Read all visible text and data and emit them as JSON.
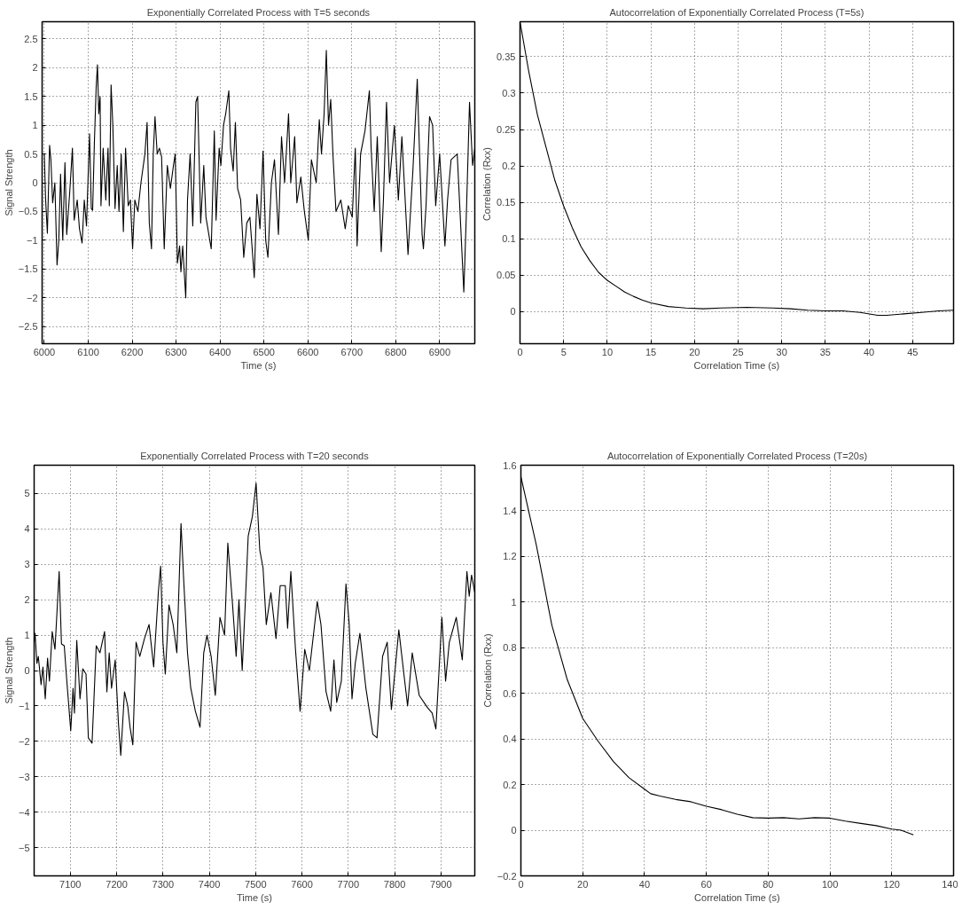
{
  "chart_data": [
    {
      "type": "line",
      "title": "Exponentially Correlated Process with T=5 seconds",
      "xlabel": "Time (s)",
      "ylabel": "Signal Strength",
      "grid": true,
      "line_style": "solid",
      "xlim": [
        5995,
        6980
      ],
      "ylim": [
        -2.8,
        2.8
      ],
      "xticks": [
        6000,
        6100,
        6200,
        6300,
        6400,
        6500,
        6600,
        6700,
        6800,
        6900
      ],
      "yticks": [
        -2.5,
        -2,
        -1.5,
        -1,
        -0.5,
        0,
        0.5,
        1,
        1.5,
        2,
        2.5
      ],
      "series": [
        {
          "color": "#000000",
          "x": [
            6000,
            6003,
            6007,
            6012,
            6015,
            6019,
            6024,
            6029,
            6033,
            6037,
            6042,
            6047,
            6051,
            6058,
            6064,
            6068,
            6075,
            6080,
            6086,
            6091,
            6096,
            6103,
            6107,
            6110,
            6114,
            6118,
            6121,
            6124,
            6127,
            6129,
            6134,
            6140,
            6145,
            6148,
            6152,
            6156,
            6161,
            6166,
            6170,
            6175,
            6180,
            6185,
            6191,
            6196,
            6201,
            6206,
            6213,
            6220,
            6229,
            6234,
            6239,
            6244,
            6248,
            6252,
            6257,
            6262,
            6267,
            6273,
            6280,
            6287,
            6294,
            6298,
            6303,
            6308,
            6311,
            6315,
            6322,
            6326,
            6332,
            6338,
            6345,
            6349,
            6356,
            6363,
            6368,
            6380,
            6387,
            6391,
            6398,
            6402,
            6408,
            6413,
            6420,
            6424,
            6430,
            6435,
            6440,
            6447,
            6454,
            6461,
            6468,
            6478,
            6484,
            6491,
            6498,
            6504,
            6509,
            6517,
            6524,
            6533,
            6540,
            6547,
            6556,
            6561,
            6570,
            6575,
            6584,
            6592,
            6601,
            6608,
            6619,
            6626,
            6631,
            6637,
            6642,
            6647,
            6652,
            6657,
            6664,
            6675,
            6685,
            6692,
            6701,
            6708,
            6712,
            6720,
            6730,
            6740,
            6744,
            6751,
            6758,
            6767,
            6772,
            6779,
            6786,
            6797,
            6806,
            6814,
            6828,
            6839,
            6849,
            6860,
            6863,
            6869,
            6877,
            6884,
            6891,
            6900,
            6912,
            6918,
            6926,
            6940,
            6947,
            6955,
            6961,
            6968,
            6975,
            6980
          ],
          "values": [
            0.5,
            -0.3,
            -0.88,
            0.65,
            0.4,
            -0.35,
            0.0,
            -1.43,
            -1.0,
            0.15,
            -1.0,
            0.35,
            -0.9,
            -0.15,
            0.6,
            -0.65,
            -0.3,
            -0.8,
            -1.05,
            -0.3,
            -0.75,
            0.85,
            -0.45,
            -0.48,
            0.7,
            1.65,
            2.05,
            1.2,
            1.5,
            -0.4,
            0.6,
            -0.3,
            0.6,
            -0.4,
            1.7,
            1.0,
            -0.45,
            0.3,
            -0.5,
            0.5,
            -0.85,
            0.6,
            -0.4,
            -0.3,
            -1.15,
            -0.3,
            -0.5,
            0.0,
            0.5,
            1.05,
            -0.7,
            -1.15,
            0.5,
            1.15,
            0.5,
            0.6,
            0.45,
            -1.15,
            0.3,
            -0.1,
            0.3,
            0.5,
            -1.4,
            -1.1,
            -1.55,
            -1.1,
            -2.0,
            -0.3,
            0.5,
            -0.75,
            1.4,
            1.5,
            -0.7,
            0.3,
            -0.6,
            -1.15,
            0.9,
            -0.65,
            0.6,
            0.3,
            1.0,
            1.2,
            1.6,
            0.6,
            0.2,
            1.05,
            -0.1,
            -0.3,
            -1.3,
            -0.7,
            -0.6,
            -1.65,
            -0.2,
            -0.8,
            0.55,
            -1.0,
            -1.3,
            0.0,
            0.4,
            -0.9,
            0.8,
            0.0,
            1.2,
            0.0,
            0.8,
            -0.35,
            0.1,
            -0.5,
            -1.0,
            0.4,
            0.0,
            1.1,
            0.5,
            1.2,
            2.3,
            1.0,
            1.45,
            0.5,
            -0.5,
            -0.3,
            -0.8,
            -0.4,
            -0.6,
            0.6,
            -1.1,
            0.5,
            0.9,
            1.6,
            0.6,
            -0.5,
            0.8,
            -1.2,
            -0.3,
            1.4,
            0.0,
            1.0,
            -0.3,
            0.8,
            -1.25,
            0.2,
            1.8,
            -0.9,
            -1.15,
            -0.4,
            1.15,
            1.0,
            -0.4,
            0.5,
            -1.1,
            -0.3,
            0.4,
            0.5,
            -0.6,
            -1.9,
            -0.5,
            1.4,
            0.3,
            0.6
          ]
        }
      ]
    },
    {
      "type": "line",
      "title": "Autocorrelation of Exponentially Correlated Process (T=5s)",
      "xlabel": "Correlation Time (s)",
      "ylabel": "Correlation  (Rxx)",
      "grid": true,
      "line_style": "solid",
      "xlim": [
        0,
        49.7
      ],
      "ylim": [
        -0.044,
        0.398
      ],
      "xticks": [
        0,
        5,
        10,
        15,
        20,
        25,
        30,
        35,
        40,
        45
      ],
      "yticks": [
        0,
        0.05,
        0.1,
        0.15,
        0.2,
        0.25,
        0.3,
        0.35
      ],
      "series": [
        {
          "color": "#000000",
          "x": [
            0,
            1,
            2,
            3,
            4,
            5,
            6,
            7,
            8,
            9,
            10,
            11,
            12,
            13,
            14,
            15,
            17,
            19,
            21,
            23,
            26,
            29,
            31,
            33,
            35,
            37,
            39,
            41,
            42,
            44,
            46,
            48,
            49.7
          ],
          "values": [
            0.398,
            0.33,
            0.27,
            0.225,
            0.18,
            0.145,
            0.115,
            0.089,
            0.07,
            0.054,
            0.043,
            0.035,
            0.027,
            0.021,
            0.016,
            0.012,
            0.007,
            0.005,
            0.004,
            0.005,
            0.006,
            0.005,
            0.004,
            0.002,
            0.001,
            0.001,
            -0.001,
            -0.005,
            -0.005,
            -0.003,
            -0.001,
            0.001,
            0.002
          ]
        }
      ]
    },
    {
      "type": "line",
      "title": "Exponentially Correlated Process with T=20 seconds",
      "xlabel": "Time (s)",
      "ylabel": "Signal Strength",
      "grid": true,
      "line_style": "solid",
      "xlim": [
        7022,
        7973
      ],
      "ylim": [
        -5.8,
        5.8
      ],
      "xticks": [
        7100,
        7200,
        7300,
        7400,
        7500,
        7600,
        7700,
        7800,
        7900
      ],
      "yticks": [
        -5,
        -4,
        -3,
        -2,
        -1,
        0,
        1,
        2,
        3,
        4,
        5
      ],
      "series": [
        {
          "color": "#000000",
          "x": [
            7022,
            7024,
            7028,
            7031,
            7037,
            7041,
            7046,
            7051,
            7055,
            7061,
            7067,
            7076,
            7081,
            7087,
            7092,
            7101,
            7106,
            7109,
            7114,
            7121,
            7127,
            7134,
            7139,
            7147,
            7156,
            7164,
            7174,
            7179,
            7184,
            7189,
            7197,
            7204,
            7209,
            7217,
            7224,
            7229,
            7235,
            7242,
            7250,
            7260,
            7270,
            7280,
            7290,
            7295,
            7300,
            7305,
            7313,
            7322,
            7330,
            7339,
            7345,
            7353,
            7360,
            7370,
            7380,
            7388,
            7395,
            7404,
            7413,
            7423,
            7433,
            7440,
            7450,
            7458,
            7464,
            7471,
            7478,
            7484,
            7493,
            7501,
            7509,
            7516,
            7523,
            7533,
            7544,
            7553,
            7564,
            7569,
            7576,
            7586,
            7596,
            7606,
            7616,
            7633,
            7641,
            7652,
            7662,
            7669,
            7675,
            7685,
            7695,
            7702,
            7708,
            7715,
            7725,
            7738,
            7753,
            7762,
            7774,
            7784,
            7793,
            7809,
            7820,
            7828,
            7838,
            7853,
            7871,
            7881,
            7889,
            7902,
            7910,
            7918,
            7933,
            7946,
            7956,
            7961,
            7966,
            7973
          ],
          "values": [
            0.8,
            1.05,
            0.2,
            0.4,
            -0.4,
            0.1,
            -0.8,
            0.35,
            -0.3,
            1.1,
            0.6,
            2.8,
            0.75,
            0.7,
            -0.2,
            -1.7,
            -0.5,
            -1.2,
            0.85,
            -0.8,
            0.05,
            -0.1,
            -1.9,
            -2.05,
            0.7,
            0.5,
            1.1,
            -0.6,
            0.5,
            -0.5,
            0.3,
            -1.5,
            -2.4,
            -0.6,
            -1.0,
            -1.6,
            -2.1,
            0.8,
            0.4,
            0.9,
            1.3,
            0.1,
            2.2,
            2.95,
            0.8,
            -0.1,
            1.85,
            1.3,
            0.5,
            4.15,
            2.5,
            0.5,
            -0.5,
            -1.15,
            -1.6,
            0.5,
            1.0,
            0.4,
            -0.7,
            1.5,
            1.0,
            3.6,
            1.9,
            0.4,
            2.0,
            0.0,
            2.0,
            3.8,
            4.35,
            5.3,
            3.4,
            2.9,
            1.3,
            2.2,
            0.9,
            2.4,
            2.4,
            1.2,
            2.8,
            0.6,
            -1.15,
            0.6,
            0.0,
            1.95,
            1.3,
            -0.6,
            -1.15,
            0.3,
            -0.9,
            -0.3,
            2.45,
            1.3,
            -0.8,
            0.2,
            1.05,
            -0.5,
            -1.8,
            -1.9,
            0.4,
            0.8,
            -1.1,
            1.15,
            -0.1,
            -1.0,
            0.5,
            -0.7,
            -1.05,
            -1.2,
            -1.65,
            1.5,
            -0.3,
            0.8,
            1.5,
            0.3,
            2.8,
            2.1,
            2.7,
            2.2
          ]
        }
      ]
    },
    {
      "type": "line",
      "title": "Autocorrelation of Exponentially Correlated Process (T=20s)",
      "xlabel": "Correlation Time (s)",
      "ylabel": "Correlation (Rxx)",
      "grid": true,
      "line_style": "solid",
      "xlim": [
        0,
        140
      ],
      "ylim": [
        -0.2,
        1.6
      ],
      "xticks": [
        0,
        20,
        40,
        60,
        80,
        100,
        120,
        140
      ],
      "yticks": [
        -0.2,
        0,
        0.2,
        0.4,
        0.6,
        0.8,
        1,
        1.2,
        1.4,
        1.6
      ],
      "series": [
        {
          "color": "#000000",
          "x": [
            0,
            5,
            10,
            15,
            20,
            25,
            30,
            35,
            40,
            42,
            45,
            50,
            55,
            60,
            65,
            70,
            75,
            80,
            85,
            90,
            95,
            100,
            105,
            110,
            115,
            120,
            123,
            127
          ],
          "values": [
            1.55,
            1.25,
            0.9,
            0.66,
            0.49,
            0.39,
            0.3,
            0.23,
            0.18,
            0.16,
            0.15,
            0.135,
            0.125,
            0.105,
            0.09,
            0.07,
            0.055,
            0.053,
            0.055,
            0.05,
            0.055,
            0.053,
            0.04,
            0.03,
            0.02,
            0.005,
            0.0,
            -0.02
          ]
        }
      ]
    }
  ]
}
